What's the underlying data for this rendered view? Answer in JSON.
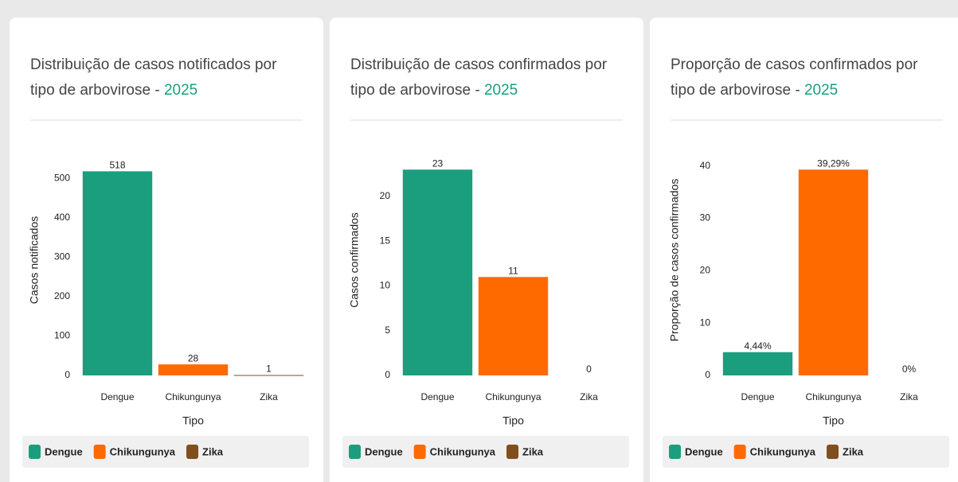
{
  "chart_data": [
    {
      "type": "bar",
      "title": "Distribuição de casos notificados por tipo de arbovirose  -",
      "title_highlight": "2025",
      "categories": [
        "Dengue",
        "Chikungunya",
        "Zika"
      ],
      "values": [
        518,
        28,
        1
      ],
      "colors": [
        "#1b9e7e",
        "#ff6a00",
        "#7f4f1e"
      ],
      "ylim": [
        0,
        545
      ],
      "yticks": [
        0,
        100,
        200,
        300,
        400,
        500
      ],
      "x_label": "Tipo",
      "y_label": "Casos notificados",
      "legend": true
    },
    {
      "type": "bar",
      "title": "Distribuição de casos confirmados por tipo de arbovirose  -",
      "title_highlight": "2025",
      "categories": [
        "Dengue",
        "Chikungunya",
        "Zika"
      ],
      "values": [
        23,
        11,
        0
      ],
      "colors": [
        "#1b9e7e",
        "#ff6a00",
        "#7f4f1e"
      ],
      "ylim": [
        0,
        24
      ],
      "yticks": [
        0,
        5,
        10,
        15,
        20
      ],
      "x_label": "Tipo",
      "y_label": "Casos confirmados",
      "legend": true
    },
    {
      "type": "bar",
      "title": "Proporção de casos confirmados por tipo de arbovirose  -",
      "title_highlight": "2025",
      "categories": [
        "Dengue",
        "Chikungunya",
        "Zika"
      ],
      "values": [
        4.44,
        39.29,
        0
      ],
      "value_labels": [
        "4,44%",
        "39,29%",
        "0%"
      ],
      "colors": [
        "#1b9e7e",
        "#ff6a00",
        "#7f4f1e"
      ],
      "ylim": [
        0,
        41
      ],
      "yticks": [
        0,
        10,
        20,
        30,
        40
      ],
      "x_label": "Tipo",
      "y_label": "Proporção de casos confirmados",
      "legend": true
    }
  ]
}
